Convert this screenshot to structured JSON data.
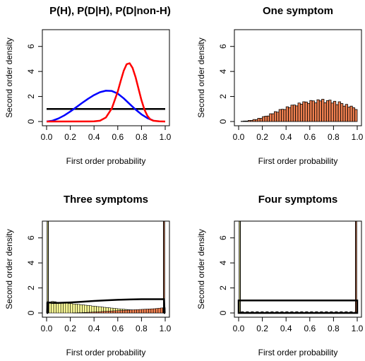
{
  "chart_data": [
    {
      "type": "line",
      "title": "P(H), P(D|H), P(D|non-H)",
      "xlabel": "First order probability",
      "ylabel": "Second order density",
      "xlim": [
        0,
        1
      ],
      "ylim": [
        0,
        7
      ],
      "xticks": [
        "0.0",
        "0.2",
        "0.4",
        "0.6",
        "0.8",
        "1.0"
      ],
      "yticks": [
        "0",
        "2",
        "4",
        "6"
      ],
      "grid": false,
      "series": [
        {
          "color": "#000000",
          "x": [
            0.0,
            1.0
          ],
          "y": [
            1.0,
            1.0
          ]
        },
        {
          "color": "#0000ff",
          "x": [
            0.0,
            0.05,
            0.1,
            0.15,
            0.2,
            0.25,
            0.3,
            0.35,
            0.4,
            0.45,
            0.5,
            0.55,
            0.6,
            0.65,
            0.7,
            0.75,
            0.8,
            0.85,
            0.9
          ],
          "y": [
            0.0,
            0.07,
            0.24,
            0.49,
            0.8,
            1.14,
            1.49,
            1.82,
            2.11,
            2.34,
            2.46,
            2.44,
            2.23,
            1.85,
            1.4,
            0.96,
            0.57,
            0.27,
            0.08
          ]
        },
        {
          "color": "#ff0000",
          "x": [
            0.0,
            0.4,
            0.45,
            0.5,
            0.55,
            0.6,
            0.625,
            0.65,
            0.675,
            0.7,
            0.725,
            0.75,
            0.775,
            0.8,
            0.825,
            0.85,
            0.875,
            0.9,
            0.95,
            1.0
          ],
          "y": [
            0.0,
            0.01,
            0.06,
            0.32,
            1.05,
            2.4,
            3.25,
            4.05,
            4.58,
            4.66,
            4.28,
            3.55,
            2.62,
            1.7,
            0.95,
            0.45,
            0.17,
            0.06,
            0.01,
            0.0
          ]
        }
      ]
    },
    {
      "type": "bar",
      "title": "One symptom",
      "xlabel": "First order probability",
      "ylabel": "Second order density",
      "xlim": [
        0,
        1
      ],
      "ylim": [
        0,
        7
      ],
      "xticks": [
        "0.0",
        "0.2",
        "0.4",
        "0.6",
        "0.8",
        "1.0"
      ],
      "yticks": [
        "0",
        "2",
        "4",
        "6"
      ],
      "grid": false,
      "bin_width": 0.02,
      "fill": "#f08050",
      "values": [
        0.0,
        0.02,
        0.03,
        0.05,
        0.07,
        0.1,
        0.13,
        0.17,
        0.22,
        0.28,
        0.34,
        0.41,
        0.48,
        0.56,
        0.64,
        0.72,
        0.8,
        0.88,
        0.95,
        1.02,
        1.09,
        1.15,
        1.21,
        1.27,
        1.32,
        1.37,
        1.42,
        1.46,
        1.5,
        1.53,
        1.55,
        1.57,
        1.58,
        1.6,
        1.61,
        1.61,
        1.6,
        1.58,
        1.56,
        1.53,
        1.5,
        1.46,
        1.42,
        1.37,
        1.32,
        1.27,
        1.21,
        1.15,
        1.1,
        0.96
      ],
      "jitter": [
        0.0,
        0.0,
        0.01,
        -0.01,
        0.02,
        -0.01,
        0.03,
        -0.02,
        0.04,
        -0.03,
        0.05,
        0.02,
        -0.04,
        0.06,
        -0.02,
        0.07,
        -0.05,
        0.08,
        0.03,
        -0.06,
        0.09,
        -0.04,
        0.1,
        0.05,
        -0.07,
        0.11,
        -0.03,
        0.12,
        0.06,
        -0.08,
        0.13,
        0.08,
        -0.09,
        0.14,
        0.04,
        0.17,
        -0.1,
        0.09,
        0.15,
        -0.05,
        0.12,
        -0.11,
        0.16,
        0.07,
        -0.09,
        0.1,
        -0.06,
        0.08,
        0.0,
        0.0
      ]
    },
    {
      "type": "bar",
      "title": "Three symptoms",
      "xlabel": "First order probability",
      "ylabel": "Second order density",
      "xlim": [
        0,
        1
      ],
      "ylim": [
        0,
        7
      ],
      "xticks": [
        "0.0",
        "0.2",
        "0.4",
        "0.6",
        "0.8",
        "1.0"
      ],
      "yticks": [
        "0",
        "2",
        "4",
        "6"
      ],
      "grid": false,
      "bin_width": 0.02,
      "yellow_fill": "#ffff99",
      "red_fill": "#f08050",
      "yellow_spike_x": 0.01,
      "red_spike_x": 0.99,
      "spike_value": 7.5,
      "yellow_values": [
        0.82,
        0.88,
        0.92,
        0.9,
        0.86,
        0.85,
        0.81,
        0.8,
        0.78,
        0.76,
        0.75,
        0.72,
        0.71,
        0.69,
        0.66,
        0.65,
        0.62,
        0.6,
        0.58,
        0.55,
        0.54,
        0.51,
        0.5,
        0.47,
        0.45,
        0.43,
        0.41,
        0.39,
        0.37,
        0.35,
        0.33,
        0.31,
        0.3,
        0.28,
        0.26,
        0.25,
        0.23,
        0.22,
        0.2,
        0.19,
        0.18,
        0.16,
        0.15,
        0.14,
        0.13,
        0.12,
        0.11,
        0.1,
        0.09,
        0.08
      ],
      "red_values": [
        0.0,
        0.0,
        0.0,
        0.0,
        0.0,
        0.0,
        0.0,
        0.0,
        0.0,
        0.0,
        0.0,
        0.01,
        0.01,
        0.02,
        0.02,
        0.03,
        0.04,
        0.05,
        0.06,
        0.07,
        0.08,
        0.09,
        0.1,
        0.12,
        0.13,
        0.14,
        0.15,
        0.16,
        0.17,
        0.18,
        0.19,
        0.2,
        0.21,
        0.22,
        0.23,
        0.24,
        0.25,
        0.26,
        0.27,
        0.28,
        0.29,
        0.3,
        0.31,
        0.32,
        0.33,
        0.34,
        0.36,
        0.38,
        0.4,
        0.42
      ],
      "curve": {
        "x": [
          0.0,
          0.05,
          0.1,
          0.2,
          0.3,
          0.4,
          0.5,
          0.6,
          0.7,
          0.8,
          0.9,
          0.95,
          0.99,
          0.995,
          1.0
        ],
        "y": [
          0.85,
          0.8,
          0.8,
          0.84,
          0.9,
          0.96,
          1.01,
          1.05,
          1.08,
          1.1,
          1.1,
          1.1,
          1.1,
          0.0,
          0.0
        ]
      },
      "curve_start": {
        "x": [
          0.0,
          0.005,
          0.01
        ],
        "y": [
          0.0,
          0.0,
          0.85
        ]
      }
    },
    {
      "type": "bar",
      "title": "Four symptoms",
      "xlabel": "First order probability",
      "ylabel": "Second order density",
      "xlim": [
        0,
        1
      ],
      "ylim": [
        0,
        7
      ],
      "xticks": [
        "0.0",
        "0.2",
        "0.4",
        "0.6",
        "0.8",
        "1.0"
      ],
      "yticks": [
        "0",
        "2",
        "4",
        "6"
      ],
      "grid": false,
      "bin_width": 0.02,
      "yellow_fill": "#ffff99",
      "red_fill": "#f08050",
      "yellow_spike_x": 0.01,
      "red_spike_x": 0.99,
      "spike_value": 7.5,
      "box": {
        "x0": 0.0,
        "x1": 1.0,
        "y": 1.0
      },
      "baseline_dashes": 0.08
    }
  ]
}
